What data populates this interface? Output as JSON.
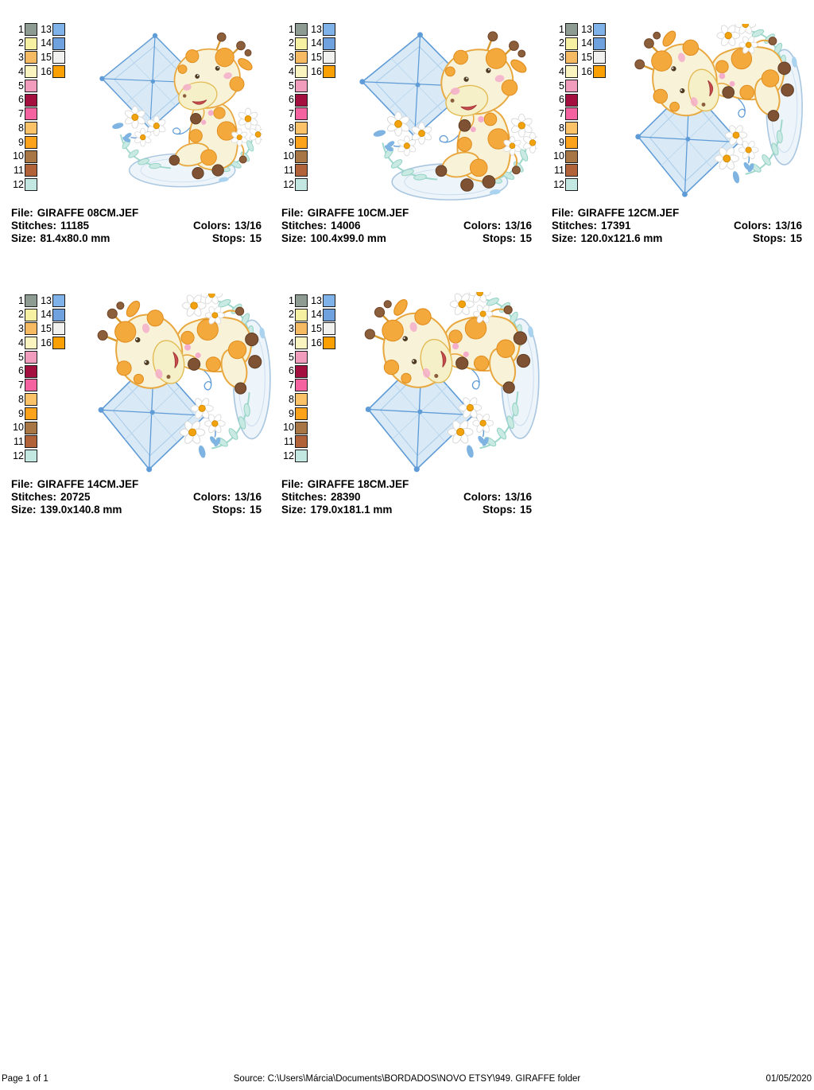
{
  "labels": {
    "file": "File:",
    "stitches": "Stitches:",
    "colors": "Colors:",
    "size": "Size:",
    "stops": "Stops:"
  },
  "designs": [
    {
      "file": "GIRAFFE 08CM.JEF",
      "stitches": "11185",
      "colors": "13/16",
      "size": "81.4x80.0 mm",
      "stops": "15",
      "orientation": "upright"
    },
    {
      "file": "GIRAFFE 10CM.JEF",
      "stitches": "14006",
      "colors": "13/16",
      "size": "100.4x99.0 mm",
      "stops": "15",
      "orientation": "upright"
    },
    {
      "file": "GIRAFFE 12CM.JEF",
      "stitches": "17391",
      "colors": "13/16",
      "size": "120.0x121.6 mm",
      "stops": "15",
      "orientation": "rotated"
    },
    {
      "file": "GIRAFFE 14CM.JEF",
      "stitches": "20725",
      "colors": "13/16",
      "size": "139.0x140.8 mm",
      "stops": "15",
      "orientation": "rotated"
    },
    {
      "file": "GIRAFFE 18CM.JEF",
      "stitches": "28390",
      "colors": "13/16",
      "size": "179.0x181.1 mm",
      "stops": "15",
      "orientation": "rotated"
    }
  ],
  "palette": {
    "main": [
      {
        "num": "1",
        "color": "#8D9B93"
      },
      {
        "num": "2",
        "color": "#F5F0A2"
      },
      {
        "num": "3",
        "color": "#F5BA62"
      },
      {
        "num": "4",
        "color": "#FAF5C0"
      },
      {
        "num": "5",
        "color": "#F19CBD"
      },
      {
        "num": "6",
        "color": "#A30F3E"
      },
      {
        "num": "7",
        "color": "#F4639F"
      },
      {
        "num": "8",
        "color": "#FBC267"
      },
      {
        "num": "9",
        "color": "#FCA31B"
      },
      {
        "num": "10",
        "color": "#A87545"
      },
      {
        "num": "11",
        "color": "#B26238"
      },
      {
        "num": "12",
        "color": "#C3E8E1"
      }
    ],
    "extra": [
      {
        "num": "13",
        "color": "#7FB2E8"
      },
      {
        "num": "14",
        "color": "#70A1DF"
      },
      {
        "num": "15",
        "color": "#F1F1EF"
      },
      {
        "num": "16",
        "color": "#FBA004"
      }
    ]
  },
  "artwork_colors": {
    "kite_fill": "#D9EAF6",
    "kite_stroke": "#5F9BD6",
    "giraffe_body": "#F8F3D8",
    "giraffe_patch": "#F3A93C",
    "giraffe_outline": "#E9A83F",
    "hoof_brown": "#7E5233",
    "leaf_fill": "#C9EAE3",
    "leaf_stroke": "#93D2C5",
    "base_fill": "#EDF4FA",
    "base_stroke": "#A9C6E0",
    "flower_center": "#F2A20D",
    "cheek_pink": "#F4AECB"
  },
  "footer": {
    "page_indicator": "Page 1 of 1",
    "source": "Source: C:\\Users\\Márcia\\Documents\\BORDADOS\\NOVO ETSY\\949. GIRAFFE folder",
    "date": "01/05/2020"
  }
}
